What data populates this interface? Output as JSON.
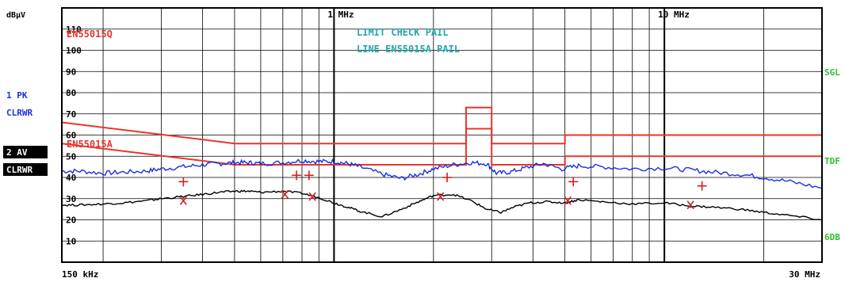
{
  "chart_data": {
    "type": "line",
    "x_scale": "log",
    "xlim_mhz": [
      0.15,
      30
    ],
    "ylim": [
      0,
      120
    ],
    "y_unit": "dBµV",
    "y_ticks": [
      10,
      20,
      30,
      40,
      50,
      60,
      70,
      80,
      90,
      100,
      110
    ],
    "x_tick_labels": [
      {
        "x": 0.15,
        "label": "150 kHz"
      },
      {
        "x": 1,
        "label": "1 MHz"
      },
      {
        "x": 10,
        "label": "10 MHz"
      },
      {
        "x": 30,
        "label": "30 MHz"
      }
    ],
    "left_labels": [
      {
        "text": "1 PK",
        "inverse": false
      },
      {
        "text": "CLRWR",
        "inverse": false
      },
      {
        "text": "2 AV",
        "inverse": true
      },
      {
        "text": "CLRWR",
        "inverse": true
      }
    ],
    "right_labels": [
      "SGL",
      "TDF",
      "6DB"
    ],
    "annotations": [
      {
        "text": "EN55015Q",
        "color": "#e8352c"
      },
      {
        "text": "EN55015A",
        "color": "#e8352c"
      },
      {
        "text": "LIMIT CHECK   PAIL",
        "color": "#2aa6a6"
      },
      {
        "text": "LINE EN55015A PAIL",
        "color": "#2aa6a6"
      }
    ],
    "limit_lines": [
      {
        "name": "EN55015Q",
        "color": "#e8352c",
        "x": [
          0.15,
          0.5,
          0.5,
          2.51,
          2.51,
          3.0,
          3.0,
          5.0,
          5.0,
          30
        ],
        "y": [
          66,
          56,
          56,
          56,
          73,
          73,
          56,
          56,
          60,
          60
        ]
      },
      {
        "name": "EN55015A",
        "color": "#e8352c",
        "x": [
          0.15,
          0.5,
          0.5,
          2.51,
          2.51,
          3.0,
          3.0,
          5.0,
          5.0,
          30
        ],
        "y": [
          56,
          46,
          46,
          46,
          63,
          63,
          46,
          46,
          50,
          50
        ]
      }
    ],
    "series": [
      {
        "name": "1 PK",
        "color": "#1a2fe0",
        "x": [
          0.15,
          0.17,
          0.2,
          0.23,
          0.27,
          0.3,
          0.35,
          0.4,
          0.45,
          0.5,
          0.55,
          0.6,
          0.7,
          0.8,
          0.9,
          1.0,
          1.1,
          1.2,
          1.4,
          1.6,
          1.8,
          2.0,
          2.3,
          2.6,
          2.9,
          3.1,
          3.4,
          3.8,
          4.3,
          4.9,
          5.5,
          6.5,
          8,
          10,
          12,
          14,
          17,
          20,
          24,
          30
        ],
        "y": [
          43,
          43,
          42,
          42.5,
          43,
          44,
          45,
          46,
          46.5,
          47,
          47,
          46.5,
          47,
          48,
          47.5,
          47.5,
          46.5,
          45,
          41.5,
          39.5,
          41.5,
          44,
          46,
          47,
          46.5,
          42,
          42.5,
          44.5,
          46.5,
          44,
          45.5,
          45,
          44,
          44.5,
          43.5,
          42.5,
          41.5,
          40,
          38,
          35
        ]
      },
      {
        "name": "2 AV",
        "color": "#000000",
        "x": [
          0.15,
          0.17,
          0.2,
          0.23,
          0.27,
          0.3,
          0.35,
          0.4,
          0.45,
          0.5,
          0.55,
          0.6,
          0.7,
          0.8,
          0.9,
          1.0,
          1.1,
          1.2,
          1.4,
          1.6,
          1.8,
          2.0,
          2.3,
          2.6,
          2.9,
          3.2,
          3.5,
          3.9,
          4.4,
          5.0,
          5.5,
          6.5,
          8,
          10,
          12,
          14,
          17,
          20,
          24,
          30
        ],
        "y": [
          27,
          27,
          27.5,
          28,
          29,
          30,
          31,
          32,
          33,
          33.5,
          33.5,
          33,
          33.5,
          32.5,
          30.5,
          28,
          26,
          24,
          21.5,
          25,
          28.5,
          31.5,
          32,
          29,
          25,
          23.5,
          26,
          28,
          28.5,
          28,
          29.5,
          28.5,
          27.5,
          28,
          26.5,
          26,
          25,
          23.5,
          22,
          20
        ]
      }
    ],
    "markers": [
      {
        "series": "1 PK",
        "symbol": "+",
        "x": 0.35,
        "y": 38
      },
      {
        "series": "1 PK",
        "symbol": "+",
        "x": 0.77,
        "y": 41
      },
      {
        "series": "1 PK",
        "symbol": "+",
        "x": 0.84,
        "y": 41
      },
      {
        "series": "1 PK",
        "symbol": "+",
        "x": 2.2,
        "y": 40
      },
      {
        "series": "1 PK",
        "symbol": "+",
        "x": 5.3,
        "y": 38
      },
      {
        "series": "1 PK",
        "symbol": "+",
        "x": 13,
        "y": 36
      },
      {
        "series": "2 AV",
        "symbol": "x",
        "x": 0.35,
        "y": 29
      },
      {
        "series": "2 AV",
        "symbol": "x",
        "x": 0.71,
        "y": 32
      },
      {
        "series": "2 AV",
        "symbol": "x",
        "x": 0.86,
        "y": 31
      },
      {
        "series": "2 AV",
        "symbol": "x",
        "x": 2.1,
        "y": 31
      },
      {
        "series": "2 AV",
        "symbol": "x",
        "x": 5.1,
        "y": 29
      },
      {
        "series": "2 AV",
        "symbol": "x",
        "x": 12,
        "y": 27
      }
    ],
    "colors": {
      "limit": "#e8352c",
      "check_text": "#2aa6a6",
      "right_text": "#2ac02a",
      "grid": "#000000"
    }
  }
}
